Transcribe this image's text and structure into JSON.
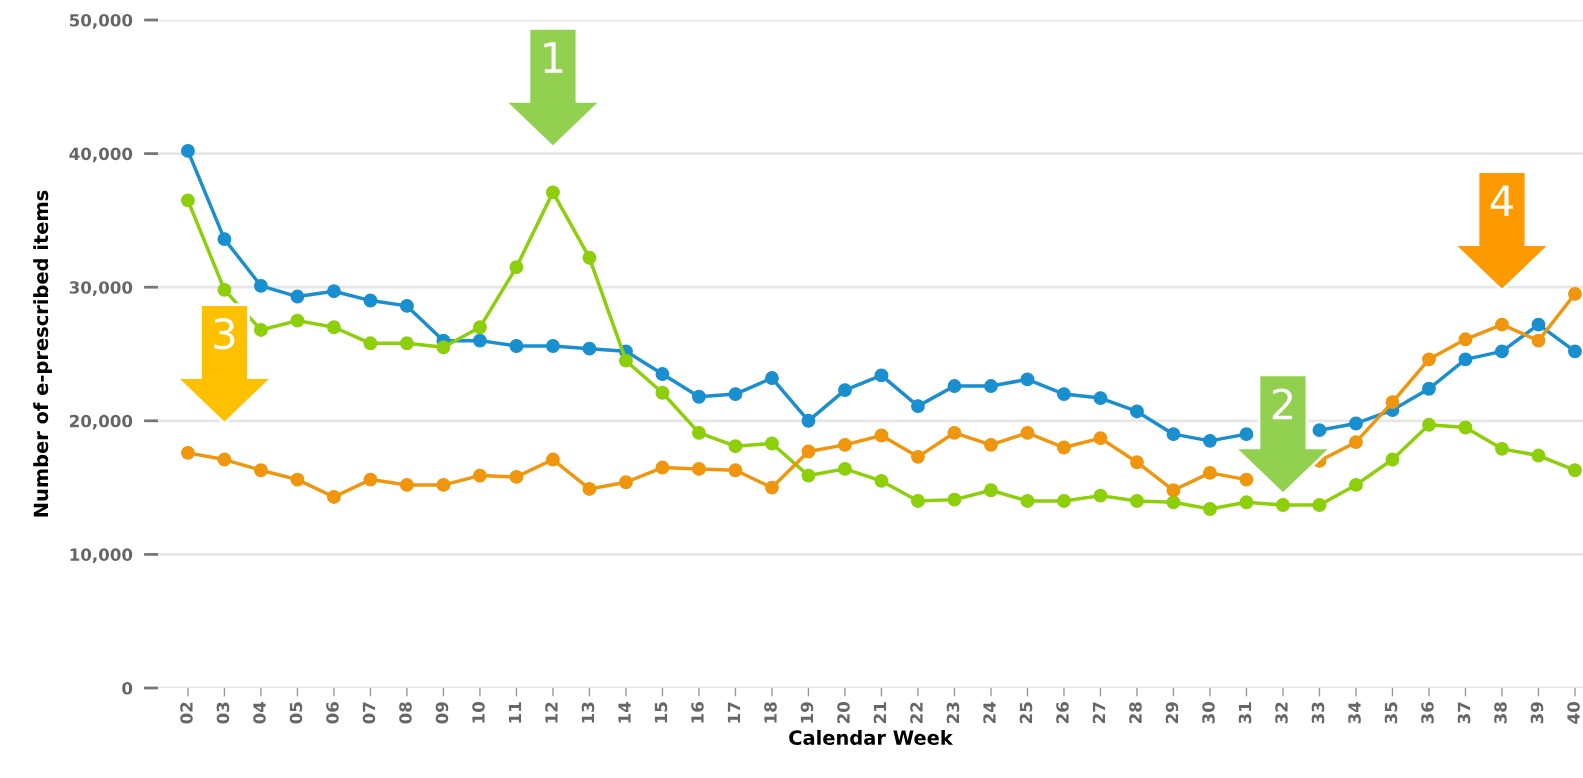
{
  "chart_data": {
    "type": "line",
    "xlabel": "Calendar Week",
    "ylabel": "Number of e-prescribed items",
    "categories": [
      "02",
      "03",
      "04",
      "05",
      "06",
      "07",
      "08",
      "09",
      "10",
      "11",
      "12",
      "13",
      "14",
      "15",
      "16",
      "17",
      "18",
      "19",
      "20",
      "21",
      "22",
      "23",
      "24",
      "25",
      "26",
      "27",
      "28",
      "29",
      "30",
      "31",
      "32",
      "33",
      "34",
      "35",
      "36",
      "37",
      "38",
      "39",
      "40"
    ],
    "series": [
      {
        "color": "#1a8fd0",
        "values": [
          40200,
          33600,
          30100,
          29300,
          29700,
          29000,
          28600,
          26000,
          26000,
          25600,
          25600,
          25400,
          25200,
          23500,
          21800,
          22000,
          23200,
          20000,
          22300,
          23400,
          21100,
          22600,
          22600,
          23100,
          22000,
          21700,
          20700,
          19000,
          18500,
          19000,
          null,
          19300,
          19800,
          20800,
          22400,
          24600,
          25200,
          27200,
          25200
        ]
      },
      {
        "color": "#8ccf0a",
        "values": [
          36500,
          29800,
          26800,
          27500,
          27000,
          25800,
          25800,
          25500,
          27000,
          31500,
          37100,
          32200,
          24500,
          22100,
          19100,
          18100,
          18300,
          15900,
          16400,
          15500,
          14000,
          14100,
          14800,
          14000,
          14000,
          14400,
          14000,
          13900,
          13400,
          13900,
          13700,
          13700,
          15200,
          17100,
          19700,
          19500,
          17900,
          17400,
          16300
        ]
      },
      {
        "color": "#f0960e",
        "values": [
          17600,
          17100,
          16300,
          15600,
          14300,
          15600,
          15200,
          15200,
          15900,
          15800,
          17100,
          14900,
          15400,
          16500,
          16400,
          16300,
          15000,
          17700,
          18200,
          18900,
          17300,
          19100,
          18200,
          19100,
          18000,
          18700,
          16900,
          14800,
          16100,
          15600,
          null,
          17000,
          18400,
          21400,
          24600,
          26100,
          27200,
          26000,
          29500
        ]
      }
    ],
    "ylim": [
      0,
      50000
    ],
    "yticks": [
      {
        "value": 0,
        "label": "0"
      },
      {
        "value": 10000,
        "label": "10,000"
      },
      {
        "value": 20000,
        "label": "20,000"
      },
      {
        "value": 30000,
        "label": "30,000"
      },
      {
        "value": 40000,
        "label": "40,000"
      },
      {
        "value": 50000,
        "label": "50,000"
      }
    ],
    "grid": "y",
    "marker": "circle",
    "line_style": "solid",
    "annotations": [
      {
        "text": "1",
        "x": "12",
        "y": 37100
      },
      {
        "text": "2",
        "x": "32",
        "y": 13700
      },
      {
        "text": "3",
        "x": "03",
        "y": 17100
      },
      {
        "text": "4",
        "x": "38",
        "y": 27200
      }
    ]
  }
}
